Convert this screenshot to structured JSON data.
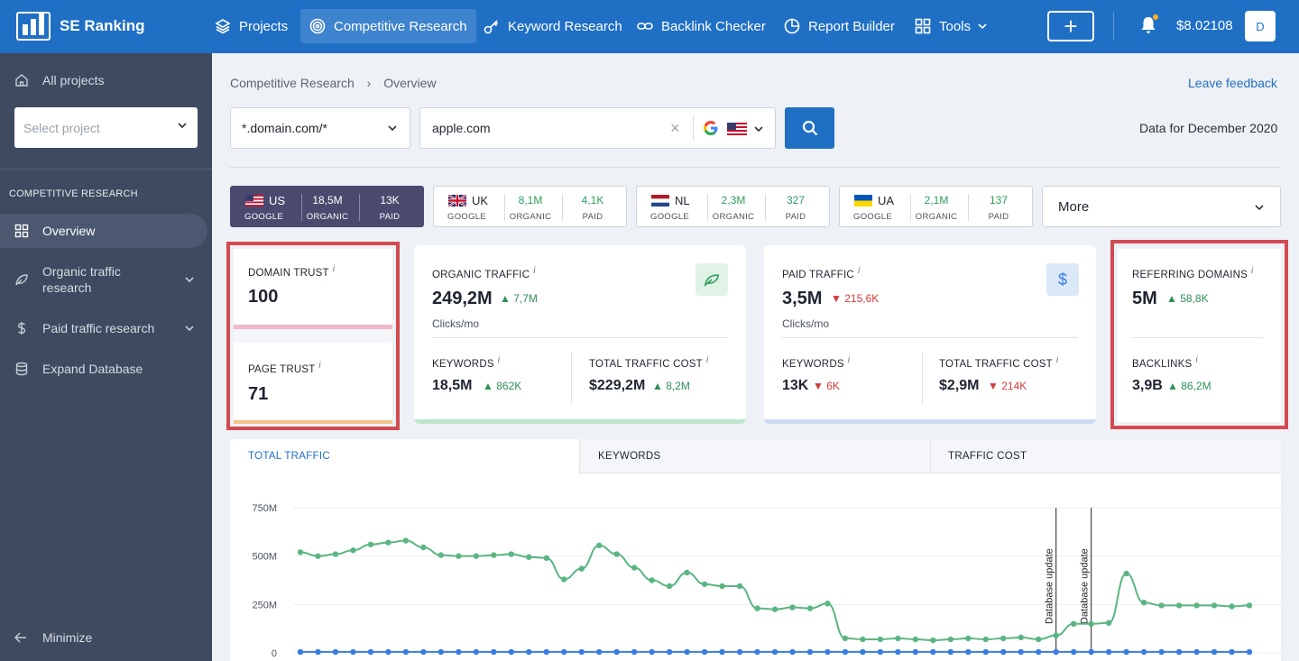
{
  "app": {
    "name": "SE Ranking"
  },
  "nav": {
    "projects": "Projects",
    "competitive": "Competitive Research",
    "keyword": "Keyword Research",
    "backlink": "Backlink Checker",
    "report": "Report Builder",
    "tools": "Tools",
    "add": "+",
    "balance": "$8.02108",
    "avatar": "D"
  },
  "sidebar": {
    "all_projects": "All projects",
    "select_project": "Select project",
    "heading": "COMPETITIVE RESEARCH",
    "overview": "Overview",
    "organic": "Organic traffic research",
    "paid": "Paid traffic research",
    "expand": "Expand Database",
    "minimize": "Minimize"
  },
  "breadcrumb": {
    "first": "Competitive Research",
    "second": "Overview"
  },
  "feedback": "Leave feedback",
  "search": {
    "mode": "*.domain.com/*",
    "query": "apple.com",
    "clear": "×",
    "data_for": "Data for December 2020"
  },
  "databases": [
    {
      "code": "US",
      "engine": "GOOGLE",
      "organic": "18,5M",
      "organic_label": "ORGANIC",
      "paid": "13K",
      "paid_label": "PAID"
    },
    {
      "code": "UK",
      "engine": "GOOGLE",
      "organic": "8,1M",
      "organic_label": "ORGANIC",
      "paid": "4,1K",
      "paid_label": "PAID"
    },
    {
      "code": "NL",
      "engine": "GOOGLE",
      "organic": "2,3M",
      "organic_label": "ORGANIC",
      "paid": "327",
      "paid_label": "PAID"
    },
    {
      "code": "UA",
      "engine": "GOOGLE",
      "organic": "2,1M",
      "organic_label": "ORGANIC",
      "paid": "137",
      "paid_label": "PAID"
    }
  ],
  "more": "More",
  "trust": {
    "domain_label": "DOMAIN TRUST",
    "domain_value": "100",
    "page_label": "PAGE TRUST",
    "page_value": "71",
    "info": "i"
  },
  "organic": {
    "label": "ORGANIC TRAFFIC",
    "value": "249,2M",
    "delta": "7,7M",
    "unit": "Clicks/mo",
    "keywords_label": "KEYWORDS",
    "keywords": "18,5M",
    "keywords_delta": "862K",
    "cost_label": "TOTAL TRAFFIC COST",
    "cost": "$229,2M",
    "cost_delta": "8,2M"
  },
  "paid": {
    "label": "PAID TRAFFIC",
    "value": "3,5M",
    "delta": "215,6K",
    "unit": "Clicks/mo",
    "icon": "$",
    "keywords_label": "KEYWORDS",
    "keywords": "13K",
    "keywords_delta": "6K",
    "cost_label": "TOTAL TRAFFIC COST",
    "cost": "$2,9M",
    "cost_delta": "214K"
  },
  "referring": {
    "label": "REFERRING DOMAINS",
    "value": "5M",
    "delta": "58,8K",
    "backlinks_label": "BACKLINKS",
    "backlinks": "3,9B",
    "backlinks_delta": "86,2M"
  },
  "chart_tabs": {
    "total": "TOTAL TRAFFIC",
    "keywords": "KEYWORDS",
    "cost": "TRAFFIC COST"
  },
  "colors": {
    "brand": "#1f6fc5",
    "sidebar": "#3d4a5f",
    "organic": "#5bb583",
    "paid": "#3a7de0",
    "highlight": "#d24a52"
  },
  "chart_data": {
    "type": "line",
    "y_ticks": [
      "750M",
      "500M",
      "250M",
      "0"
    ],
    "ylim": [
      0,
      750
    ],
    "annotations": [
      "Database update",
      "Database update"
    ],
    "annotation_x": [
      43,
      45
    ],
    "series": [
      {
        "values": [
          520,
          500,
          510,
          530,
          560,
          570,
          580,
          545,
          505,
          500,
          500,
          505,
          510,
          495,
          490,
          380,
          435,
          555,
          510,
          440,
          375,
          345,
          415,
          355,
          345,
          345,
          230,
          225,
          235,
          230,
          255,
          75,
          70,
          70,
          75,
          70,
          65,
          70,
          75,
          70,
          75,
          80,
          70,
          90,
          150,
          150,
          155,
          410,
          260,
          245,
          245,
          245,
          245,
          240,
          245
        ]
      },
      {
        "values": [
          5,
          5,
          5,
          5,
          5,
          5,
          5,
          5,
          5,
          5,
          5,
          5,
          5,
          5,
          5,
          5,
          5,
          5,
          5,
          5,
          5,
          5,
          5,
          5,
          5,
          5,
          5,
          5,
          5,
          5,
          5,
          5,
          5,
          5,
          5,
          5,
          5,
          5,
          5,
          5,
          5,
          5,
          5,
          5,
          5,
          5,
          5,
          5,
          5,
          5,
          5,
          5,
          5,
          5,
          5
        ]
      }
    ]
  }
}
